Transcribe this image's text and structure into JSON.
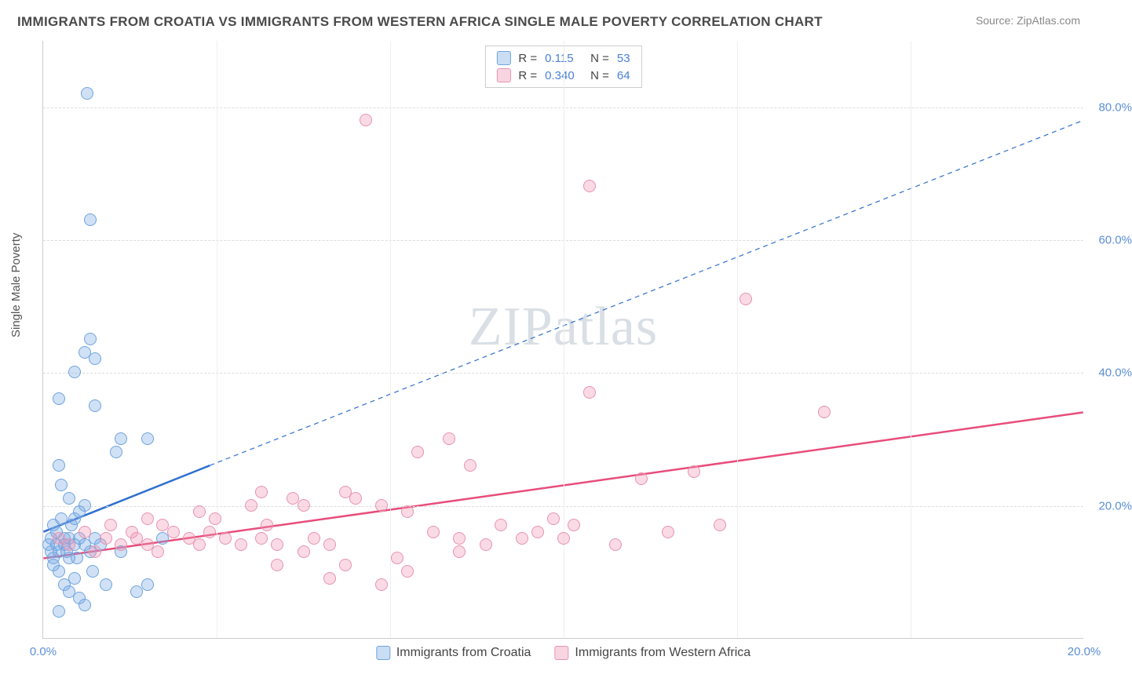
{
  "title": "IMMIGRANTS FROM CROATIA VS IMMIGRANTS FROM WESTERN AFRICA SINGLE MALE POVERTY CORRELATION CHART",
  "source": "Source: ZipAtlas.com",
  "ylabel": "Single Male Poverty",
  "watermark_a": "ZIP",
  "watermark_b": "atlas",
  "chart": {
    "type": "scatter",
    "xlim": [
      0,
      20
    ],
    "ylim": [
      0,
      90
    ],
    "xticks": [
      0,
      20
    ],
    "xtick_labels": [
      "0.0%",
      "20.0%"
    ],
    "yticks": [
      20,
      40,
      60,
      80
    ],
    "ytick_labels": [
      "20.0%",
      "40.0%",
      "60.0%",
      "80.0%"
    ],
    "xgrid": [
      3.33,
      6.67,
      10.0,
      13.33,
      16.67
    ],
    "background_color": "#ffffff",
    "grid_color": "#dddddd",
    "point_radius": 8,
    "point_stroke_width": 1.2,
    "series": [
      {
        "name": "Immigrants from Croatia",
        "fill": "rgba(120,170,230,0.35)",
        "stroke": "#6fa3dd",
        "r": 0.115,
        "n": 53,
        "line_color": "#2f6fcf",
        "line_width": 2.5,
        "line": {
          "x1": 0,
          "y1": 16,
          "x2": 3.2,
          "y2": 26,
          "dash_x2": 20,
          "dash_y2": 78
        },
        "points": [
          [
            0.1,
            14
          ],
          [
            0.2,
            12
          ],
          [
            0.15,
            15
          ],
          [
            0.3,
            13
          ],
          [
            0.25,
            16
          ],
          [
            0.4,
            14
          ],
          [
            0.35,
            18
          ],
          [
            0.2,
            11
          ],
          [
            0.5,
            15
          ],
          [
            0.45,
            13
          ],
          [
            0.6,
            14
          ],
          [
            0.55,
            17
          ],
          [
            0.3,
            10
          ],
          [
            0.7,
            15
          ],
          [
            0.65,
            12
          ],
          [
            0.8,
            14
          ],
          [
            0.4,
            8
          ],
          [
            0.9,
            13
          ],
          [
            0.5,
            7
          ],
          [
            1.0,
            15
          ],
          [
            0.6,
            9
          ],
          [
            1.1,
            14
          ],
          [
            0.7,
            6
          ],
          [
            1.2,
            8
          ],
          [
            1.5,
            13
          ],
          [
            1.8,
            7
          ],
          [
            2.0,
            8
          ],
          [
            0.8,
            5
          ],
          [
            0.3,
            4
          ],
          [
            1.0,
            35
          ],
          [
            0.6,
            40
          ],
          [
            1.0,
            42
          ],
          [
            0.8,
            43
          ],
          [
            0.9,
            45
          ],
          [
            0.35,
            23
          ],
          [
            0.3,
            26
          ],
          [
            1.4,
            28
          ],
          [
            1.5,
            30
          ],
          [
            2.0,
            30
          ],
          [
            0.3,
            36
          ],
          [
            0.6,
            18
          ],
          [
            0.7,
            19
          ],
          [
            0.8,
            20
          ],
          [
            0.5,
            21
          ],
          [
            0.9,
            63
          ],
          [
            0.85,
            82
          ],
          [
            0.95,
            10
          ],
          [
            2.3,
            15
          ],
          [
            0.2,
            17
          ],
          [
            0.15,
            13
          ],
          [
            0.4,
            15
          ],
          [
            0.5,
            12
          ],
          [
            0.25,
            14
          ]
        ]
      },
      {
        "name": "Immigrants from Western Africa",
        "fill": "rgba(240,150,180,0.35)",
        "stroke": "#e793b0",
        "r": 0.34,
        "n": 64,
        "line_color": "#e84d7a",
        "line_width": 2.5,
        "line": {
          "x1": 0,
          "y1": 12,
          "x2": 20,
          "y2": 34
        },
        "points": [
          [
            0.3,
            15
          ],
          [
            0.5,
            14
          ],
          [
            0.8,
            16
          ],
          [
            1.0,
            13
          ],
          [
            1.2,
            15
          ],
          [
            1.5,
            14
          ],
          [
            1.8,
            15
          ],
          [
            2.0,
            14
          ],
          [
            2.2,
            13
          ],
          [
            2.5,
            16
          ],
          [
            2.8,
            15
          ],
          [
            3.0,
            14
          ],
          [
            3.2,
            16
          ],
          [
            3.5,
            15
          ],
          [
            3.8,
            14
          ],
          [
            4.0,
            20
          ],
          [
            4.2,
            15
          ],
          [
            4.5,
            14
          ],
          [
            4.8,
            21
          ],
          [
            5.0,
            20
          ],
          [
            5.2,
            15
          ],
          [
            5.5,
            14
          ],
          [
            5.8,
            22
          ],
          [
            6.0,
            21
          ],
          [
            6.5,
            20
          ],
          [
            7.0,
            19
          ],
          [
            7.2,
            28
          ],
          [
            7.5,
            16
          ],
          [
            7.8,
            30
          ],
          [
            8.0,
            15
          ],
          [
            8.2,
            26
          ],
          [
            8.5,
            14
          ],
          [
            8.8,
            17
          ],
          [
            9.2,
            15
          ],
          [
            9.5,
            16
          ],
          [
            9.8,
            18
          ],
          [
            10.0,
            15
          ],
          [
            10.2,
            17
          ],
          [
            10.5,
            37
          ],
          [
            11.0,
            14
          ],
          [
            11.5,
            24
          ],
          [
            12.0,
            16
          ],
          [
            12.5,
            25
          ],
          [
            13.0,
            17
          ],
          [
            5.5,
            9
          ],
          [
            6.5,
            8
          ],
          [
            7.0,
            10
          ],
          [
            4.2,
            22
          ],
          [
            5.0,
            13
          ],
          [
            6.2,
            78
          ],
          [
            10.5,
            68
          ],
          [
            13.5,
            51
          ],
          [
            15.0,
            34
          ],
          [
            2.0,
            18
          ],
          [
            3.0,
            19
          ],
          [
            4.5,
            11
          ],
          [
            5.8,
            11
          ],
          [
            6.8,
            12
          ],
          [
            8.0,
            13
          ],
          [
            1.3,
            17
          ],
          [
            1.7,
            16
          ],
          [
            2.3,
            17
          ],
          [
            3.3,
            18
          ],
          [
            4.3,
            17
          ]
        ]
      }
    ]
  },
  "legend_top": {
    "rows": [
      {
        "swatch_fill": "rgba(120,170,230,0.4)",
        "swatch_stroke": "#6fa3dd",
        "r_label": "R =",
        "r_value": "0.115",
        "n_label": "N =",
        "n_value": "53"
      },
      {
        "swatch_fill": "rgba(240,150,180,0.4)",
        "swatch_stroke": "#e793b0",
        "r_label": "R =",
        "r_value": "0.340",
        "n_label": "N =",
        "n_value": "64"
      }
    ]
  },
  "legend_bottom": {
    "items": [
      {
        "swatch_fill": "rgba(120,170,230,0.4)",
        "swatch_stroke": "#6fa3dd",
        "label": "Immigrants from Croatia"
      },
      {
        "swatch_fill": "rgba(240,150,180,0.4)",
        "swatch_stroke": "#e793b0",
        "label": "Immigrants from Western Africa"
      }
    ]
  }
}
